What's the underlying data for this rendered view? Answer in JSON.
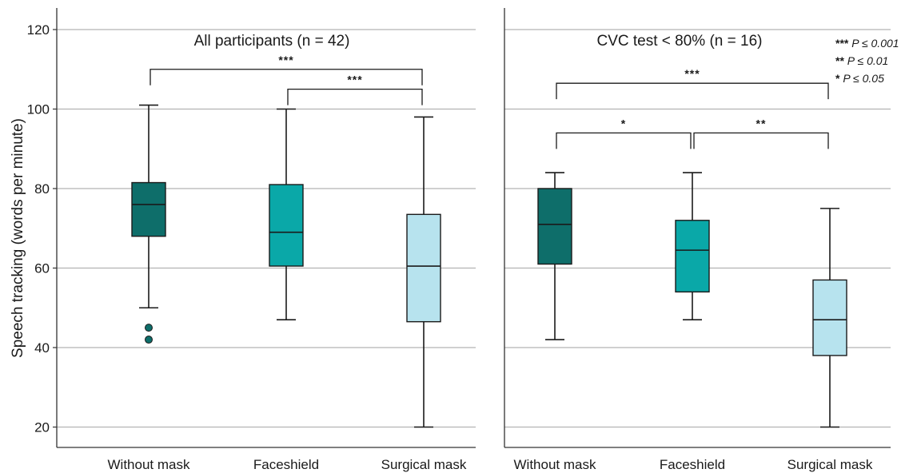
{
  "chart_data": {
    "type": "box",
    "ylabel": "Speech tracking (words per minute)",
    "ylim": [
      15,
      125
    ],
    "yticks": [
      20,
      40,
      60,
      80,
      100,
      120
    ],
    "grid": true,
    "colors": {
      "Without mask": "#0e6e6a",
      "Faceshield": "#0aa8a8",
      "Surgical mask": "#b7e3ee"
    },
    "legend": [
      {
        "stars": "***",
        "text": "P ≤ 0.001"
      },
      {
        "stars": "**",
        "text": "P ≤ 0.01"
      },
      {
        "stars": "*",
        "text": "P ≤ 0.05"
      }
    ],
    "panels": [
      {
        "title": "All participants (n = 42)",
        "categories": [
          "Without mask",
          "Faceshield",
          "Surgical mask"
        ],
        "boxes": [
          {
            "category": "Without mask",
            "min": 50,
            "q1": 68,
            "median": 76,
            "q3": 81.5,
            "max": 101,
            "outliers": [
              45,
              42
            ]
          },
          {
            "category": "Faceshield",
            "min": 47,
            "q1": 60.5,
            "median": 69,
            "q3": 81,
            "max": 100,
            "outliers": []
          },
          {
            "category": "Surgical mask",
            "min": 20,
            "q1": 46.5,
            "median": 60.5,
            "q3": 73.5,
            "max": 98,
            "outliers": []
          }
        ],
        "significance": [
          {
            "from": 0,
            "to": 2,
            "y": 110,
            "stars": "***"
          },
          {
            "from": 1,
            "to": 2,
            "y": 105,
            "stars": "***"
          }
        ]
      },
      {
        "title": "CVC test < 80% (n = 16)",
        "categories": [
          "Without mask",
          "Faceshield",
          "Surgical mask"
        ],
        "boxes": [
          {
            "category": "Without mask",
            "min": 42,
            "q1": 61,
            "median": 71,
            "q3": 80,
            "max": 84,
            "outliers": []
          },
          {
            "category": "Faceshield",
            "min": 47,
            "q1": 54,
            "median": 64.5,
            "q3": 72,
            "max": 84,
            "outliers": []
          },
          {
            "category": "Surgical mask",
            "min": 20,
            "q1": 38,
            "median": 47,
            "q3": 57,
            "max": 75,
            "outliers": []
          }
        ],
        "significance": [
          {
            "from": 0,
            "to": 2,
            "y": 106.5,
            "stars": "***"
          },
          {
            "from": 0,
            "to": 1,
            "y": 94,
            "stars": "*"
          },
          {
            "from": 1,
            "to": 2,
            "y": 94,
            "stars": "**"
          }
        ]
      }
    ]
  }
}
